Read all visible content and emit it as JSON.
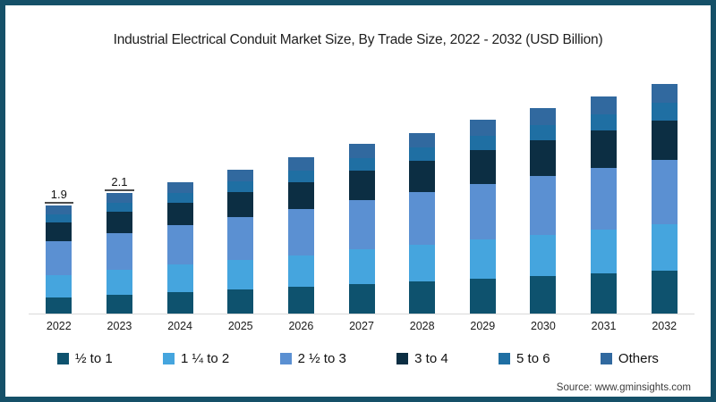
{
  "page": {
    "title": "Industrial Electrical Conduit Market Size, By Trade Size, 2022 - 2032 (USD Billion)",
    "source": "Source: www.gminsights.com"
  },
  "frame_color": "#155068",
  "chart_data": {
    "type": "bar",
    "stacked": true,
    "title": "Industrial Electrical Conduit Market Size, By Trade Size, 2022 - 2032 (USD Billion)",
    "unit": "USD Billion",
    "xlabel": "",
    "ylabel": "",
    "ylim": [
      0,
      4.2
    ],
    "grid": false,
    "legend_position": "bottom",
    "categories": [
      "2022",
      "2023",
      "2024",
      "2025",
      "2026",
      "2027",
      "2028",
      "2029",
      "2030",
      "2031",
      "2032"
    ],
    "series": [
      {
        "name": "½ to 1",
        "color": "#0e526e",
        "values": [
          0.28,
          0.33,
          0.38,
          0.42,
          0.47,
          0.52,
          0.57,
          0.62,
          0.66,
          0.71,
          0.76
        ]
      },
      {
        "name": "1 ¼ to 2",
        "color": "#45a5de",
        "values": [
          0.4,
          0.44,
          0.48,
          0.52,
          0.56,
          0.61,
          0.65,
          0.69,
          0.73,
          0.77,
          0.81
        ]
      },
      {
        "name": "2 ½ to 3",
        "color": "#5b90d2",
        "values": [
          0.59,
          0.65,
          0.7,
          0.76,
          0.81,
          0.87,
          0.92,
          0.98,
          1.03,
          1.09,
          1.14
        ]
      },
      {
        "name": "3 to 4",
        "color": "#0c2e43",
        "values": [
          0.33,
          0.37,
          0.4,
          0.44,
          0.48,
          0.52,
          0.55,
          0.59,
          0.63,
          0.66,
          0.7
        ]
      },
      {
        "name": "5 to 6",
        "color": "#1f6fa3",
        "values": [
          0.14,
          0.16,
          0.17,
          0.19,
          0.2,
          0.22,
          0.24,
          0.25,
          0.27,
          0.28,
          0.3
        ]
      },
      {
        "name": "Others",
        "color": "#31699f",
        "values": [
          0.16,
          0.18,
          0.19,
          0.21,
          0.23,
          0.25,
          0.26,
          0.28,
          0.3,
          0.31,
          0.33
        ]
      }
    ],
    "totals": [
      1.9,
      2.1,
      2.3,
      2.5,
      2.8,
      3.0,
      3.2,
      3.4,
      3.6,
      3.8,
      4.0
    ],
    "data_labels": {
      "2022": "1.9",
      "2023": "2.1"
    }
  }
}
